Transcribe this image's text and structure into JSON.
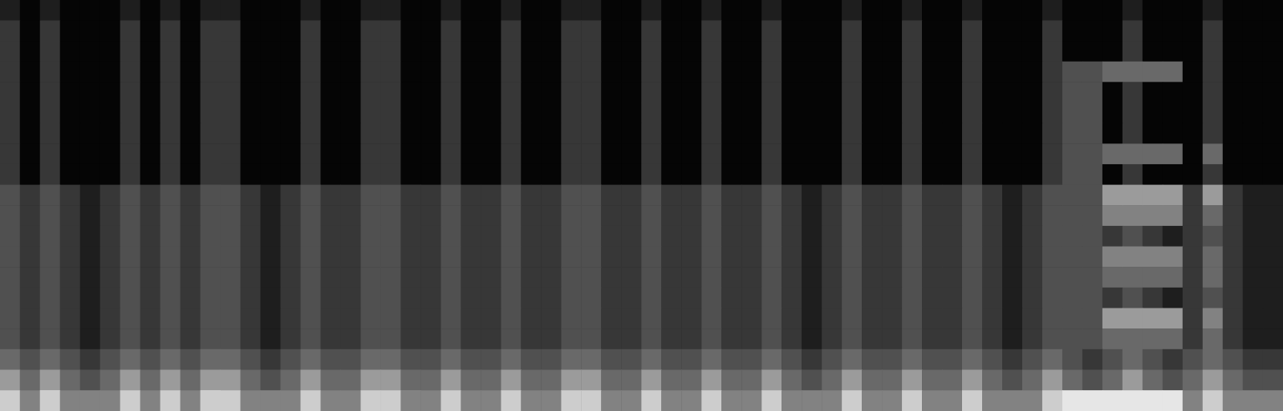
{
  "chart_data": {
    "type": "heatmap",
    "tick_labels": false,
    "grid": false,
    "zlim": [
      0,
      10
    ],
    "cells": [
      [
        1,
        0,
        1,
        0,
        0,
        0,
        1,
        0,
        1,
        0,
        1,
        1,
        0,
        0,
        0,
        1,
        0,
        0,
        1,
        1,
        0,
        0,
        1,
        0,
        0,
        1,
        0,
        0,
        1,
        1,
        0,
        0,
        1,
        0,
        0,
        1,
        0,
        0,
        1,
        0,
        0,
        0,
        1,
        0,
        0,
        1,
        0,
        0,
        1,
        0,
        0,
        0,
        1,
        0,
        0,
        0,
        1,
        0,
        0,
        0,
        1,
        0,
        0,
        0
      ],
      [
        2,
        0,
        2,
        0,
        0,
        0,
        2,
        0,
        2,
        0,
        2,
        2,
        0,
        0,
        0,
        2,
        0,
        0,
        2,
        2,
        0,
        0,
        2,
        0,
        0,
        2,
        0,
        0,
        2,
        2,
        0,
        0,
        2,
        0,
        0,
        2,
        0,
        0,
        2,
        0,
        0,
        0,
        2,
        0,
        0,
        2,
        0,
        0,
        2,
        0,
        0,
        0,
        2,
        0,
        0,
        0,
        2,
        0,
        0,
        0,
        2,
        0,
        0,
        0
      ],
      [
        2,
        0,
        2,
        0,
        0,
        0,
        2,
        0,
        2,
        0,
        2,
        2,
        0,
        0,
        0,
        2,
        0,
        0,
        2,
        2,
        0,
        0,
        2,
        0,
        0,
        2,
        0,
        0,
        2,
        2,
        0,
        0,
        2,
        0,
        0,
        2,
        0,
        0,
        2,
        0,
        0,
        0,
        2,
        0,
        0,
        2,
        0,
        0,
        2,
        0,
        0,
        0,
        2,
        0,
        0,
        0,
        2,
        0,
        0,
        0,
        2,
        0,
        0,
        0
      ],
      [
        2,
        0,
        2,
        0,
        0,
        0,
        2,
        0,
        2,
        0,
        2,
        2,
        0,
        0,
        0,
        2,
        0,
        0,
        2,
        2,
        0,
        0,
        2,
        0,
        0,
        2,
        0,
        0,
        2,
        2,
        0,
        0,
        2,
        0,
        0,
        2,
        0,
        0,
        2,
        0,
        0,
        0,
        2,
        0,
        0,
        2,
        0,
        0,
        2,
        0,
        0,
        0,
        2,
        3,
        3,
        4,
        4,
        4,
        4,
        0,
        2,
        0,
        0,
        0
      ],
      [
        2,
        0,
        2,
        0,
        0,
        0,
        2,
        0,
        2,
        0,
        2,
        2,
        0,
        0,
        0,
        2,
        0,
        0,
        2,
        2,
        0,
        0,
        2,
        0,
        0,
        2,
        0,
        0,
        2,
        2,
        0,
        0,
        2,
        0,
        0,
        2,
        0,
        0,
        2,
        0,
        0,
        0,
        2,
        0,
        0,
        2,
        0,
        0,
        2,
        0,
        0,
        0,
        2,
        3,
        3,
        0,
        2,
        0,
        0,
        0,
        2,
        0,
        0,
        0
      ],
      [
        2,
        0,
        2,
        0,
        0,
        0,
        2,
        0,
        2,
        0,
        2,
        2,
        0,
        0,
        0,
        2,
        0,
        0,
        2,
        2,
        0,
        0,
        2,
        0,
        0,
        2,
        0,
        0,
        2,
        2,
        0,
        0,
        2,
        0,
        0,
        2,
        0,
        0,
        2,
        0,
        0,
        0,
        2,
        0,
        0,
        2,
        0,
        0,
        2,
        0,
        0,
        0,
        2,
        3,
        3,
        0,
        2,
        0,
        0,
        0,
        2,
        0,
        0,
        0
      ],
      [
        2,
        0,
        2,
        0,
        0,
        0,
        2,
        0,
        2,
        0,
        2,
        2,
        0,
        0,
        0,
        2,
        0,
        0,
        2,
        2,
        0,
        0,
        2,
        0,
        0,
        2,
        0,
        0,
        2,
        2,
        0,
        0,
        2,
        0,
        0,
        2,
        0,
        0,
        2,
        0,
        0,
        0,
        2,
        0,
        0,
        2,
        0,
        0,
        2,
        0,
        0,
        0,
        2,
        3,
        3,
        0,
        2,
        0,
        0,
        0,
        2,
        0,
        0,
        0
      ],
      [
        2,
        0,
        2,
        0,
        0,
        0,
        2,
        0,
        2,
        0,
        2,
        2,
        0,
        0,
        0,
        2,
        0,
        0,
        2,
        2,
        0,
        0,
        2,
        0,
        0,
        2,
        0,
        0,
        2,
        2,
        0,
        0,
        2,
        0,
        0,
        2,
        0,
        0,
        2,
        0,
        0,
        0,
        2,
        0,
        0,
        2,
        0,
        0,
        2,
        0,
        0,
        0,
        2,
        3,
        3,
        4,
        4,
        4,
        4,
        0,
        4,
        0,
        0,
        0
      ],
      [
        2,
        0,
        2,
        0,
        0,
        0,
        2,
        0,
        2,
        0,
        2,
        2,
        0,
        0,
        0,
        2,
        0,
        0,
        2,
        2,
        0,
        0,
        2,
        0,
        0,
        2,
        0,
        0,
        2,
        2,
        0,
        0,
        2,
        0,
        0,
        2,
        0,
        0,
        2,
        0,
        0,
        0,
        2,
        0,
        0,
        2,
        0,
        0,
        2,
        0,
        0,
        0,
        2,
        3,
        3,
        0,
        2,
        0,
        0,
        0,
        2,
        0,
        0,
        0
      ],
      [
        3,
        2,
        3,
        2,
        1,
        2,
        3,
        2,
        3,
        2,
        3,
        3,
        2,
        1,
        2,
        3,
        2,
        2,
        3,
        3,
        2,
        2,
        3,
        2,
        2,
        3,
        2,
        2,
        3,
        3,
        2,
        2,
        3,
        2,
        2,
        3,
        2,
        2,
        3,
        2,
        1,
        2,
        3,
        2,
        2,
        3,
        2,
        2,
        3,
        2,
        1,
        2,
        3,
        3,
        3,
        6,
        6,
        6,
        6,
        2,
        6,
        2,
        1,
        1
      ],
      [
        3,
        2,
        3,
        2,
        1,
        2,
        3,
        2,
        3,
        2,
        3,
        3,
        2,
        1,
        2,
        3,
        2,
        2,
        3,
        3,
        2,
        2,
        3,
        2,
        2,
        3,
        2,
        2,
        3,
        3,
        2,
        2,
        3,
        2,
        2,
        3,
        2,
        2,
        3,
        2,
        1,
        2,
        3,
        2,
        2,
        3,
        2,
        2,
        3,
        2,
        1,
        2,
        3,
        3,
        3,
        5,
        5,
        5,
        5,
        2,
        4,
        2,
        1,
        1
      ],
      [
        3,
        2,
        3,
        2,
        1,
        2,
        3,
        2,
        3,
        2,
        3,
        3,
        2,
        1,
        2,
        3,
        2,
        2,
        3,
        3,
        2,
        2,
        3,
        2,
        2,
        3,
        2,
        2,
        3,
        3,
        2,
        2,
        3,
        2,
        2,
        3,
        2,
        2,
        3,
        2,
        1,
        2,
        3,
        2,
        2,
        3,
        2,
        2,
        3,
        2,
        1,
        2,
        3,
        3,
        3,
        2,
        3,
        2,
        1,
        2,
        3,
        2,
        1,
        1
      ],
      [
        3,
        2,
        3,
        2,
        1,
        2,
        3,
        2,
        3,
        2,
        3,
        3,
        2,
        1,
        2,
        3,
        2,
        2,
        3,
        3,
        2,
        2,
        3,
        2,
        2,
        3,
        2,
        2,
        3,
        3,
        2,
        2,
        3,
        2,
        2,
        3,
        2,
        2,
        3,
        2,
        1,
        2,
        3,
        2,
        2,
        3,
        2,
        2,
        3,
        2,
        1,
        2,
        3,
        3,
        3,
        5,
        5,
        5,
        5,
        2,
        4,
        2,
        1,
        1
      ],
      [
        3,
        2,
        3,
        2,
        1,
        2,
        3,
        2,
        3,
        2,
        3,
        3,
        2,
        1,
        2,
        3,
        2,
        2,
        3,
        3,
        2,
        2,
        3,
        2,
        2,
        3,
        2,
        2,
        3,
        3,
        2,
        2,
        3,
        2,
        2,
        3,
        2,
        2,
        3,
        2,
        1,
        2,
        3,
        2,
        2,
        3,
        2,
        2,
        3,
        2,
        1,
        2,
        3,
        3,
        3,
        4,
        4,
        4,
        4,
        2,
        4,
        2,
        1,
        1
      ],
      [
        3,
        2,
        3,
        2,
        1,
        2,
        3,
        2,
        3,
        2,
        3,
        3,
        2,
        1,
        2,
        3,
        2,
        2,
        3,
        3,
        2,
        2,
        3,
        2,
        2,
        3,
        2,
        2,
        3,
        3,
        2,
        2,
        3,
        2,
        2,
        3,
        2,
        2,
        3,
        2,
        1,
        2,
        3,
        2,
        2,
        3,
        2,
        2,
        3,
        2,
        1,
        2,
        3,
        3,
        3,
        2,
        3,
        2,
        1,
        2,
        3,
        2,
        1,
        1
      ],
      [
        3,
        2,
        3,
        2,
        1,
        2,
        3,
        2,
        3,
        2,
        3,
        3,
        2,
        1,
        2,
        3,
        2,
        2,
        3,
        3,
        2,
        2,
        3,
        2,
        2,
        3,
        2,
        2,
        3,
        3,
        2,
        2,
        3,
        2,
        2,
        3,
        2,
        2,
        3,
        2,
        1,
        2,
        3,
        2,
        2,
        3,
        2,
        2,
        3,
        2,
        1,
        2,
        3,
        3,
        3,
        6,
        6,
        6,
        6,
        2,
        5,
        2,
        1,
        1
      ],
      [
        3,
        2,
        3,
        2,
        1,
        2,
        3,
        2,
        3,
        2,
        3,
        3,
        2,
        1,
        2,
        3,
        2,
        2,
        3,
        3,
        2,
        2,
        3,
        2,
        2,
        3,
        2,
        2,
        3,
        3,
        2,
        2,
        3,
        2,
        2,
        3,
        2,
        2,
        3,
        2,
        1,
        2,
        3,
        2,
        2,
        3,
        2,
        2,
        3,
        2,
        1,
        2,
        3,
        3,
        3,
        4,
        4,
        4,
        4,
        2,
        4,
        2,
        1,
        1
      ],
      [
        4,
        3,
        4,
        3,
        2,
        3,
        4,
        3,
        4,
        3,
        4,
        4,
        3,
        2,
        3,
        4,
        3,
        3,
        4,
        4,
        3,
        3,
        4,
        3,
        3,
        4,
        3,
        3,
        4,
        4,
        3,
        3,
        4,
        3,
        3,
        4,
        3,
        3,
        4,
        3,
        2,
        3,
        4,
        3,
        3,
        4,
        3,
        3,
        4,
        3,
        2,
        3,
        4,
        3,
        2,
        3,
        4,
        3,
        2,
        3,
        4,
        3,
        2,
        2
      ],
      [
        6,
        4,
        6,
        4,
        3,
        4,
        6,
        4,
        6,
        4,
        6,
        6,
        4,
        3,
        4,
        6,
        4,
        4,
        6,
        6,
        4,
        4,
        6,
        4,
        4,
        6,
        4,
        4,
        6,
        6,
        4,
        4,
        6,
        4,
        4,
        6,
        4,
        4,
        6,
        4,
        3,
        4,
        6,
        4,
        4,
        6,
        4,
        4,
        6,
        4,
        3,
        4,
        6,
        4,
        3,
        4,
        6,
        4,
        3,
        4,
        6,
        4,
        3,
        3
      ],
      [
        8,
        5,
        8,
        5,
        5,
        5,
        8,
        5,
        8,
        5,
        8,
        8,
        5,
        5,
        5,
        8,
        5,
        5,
        8,
        8,
        5,
        5,
        8,
        5,
        5,
        8,
        5,
        5,
        8,
        8,
        5,
        5,
        8,
        5,
        5,
        8,
        5,
        5,
        8,
        5,
        5,
        5,
        8,
        5,
        5,
        8,
        5,
        5,
        8,
        5,
        5,
        5,
        8,
        9,
        9,
        9,
        9,
        9,
        9,
        5,
        8,
        5,
        5,
        5
      ]
    ]
  }
}
